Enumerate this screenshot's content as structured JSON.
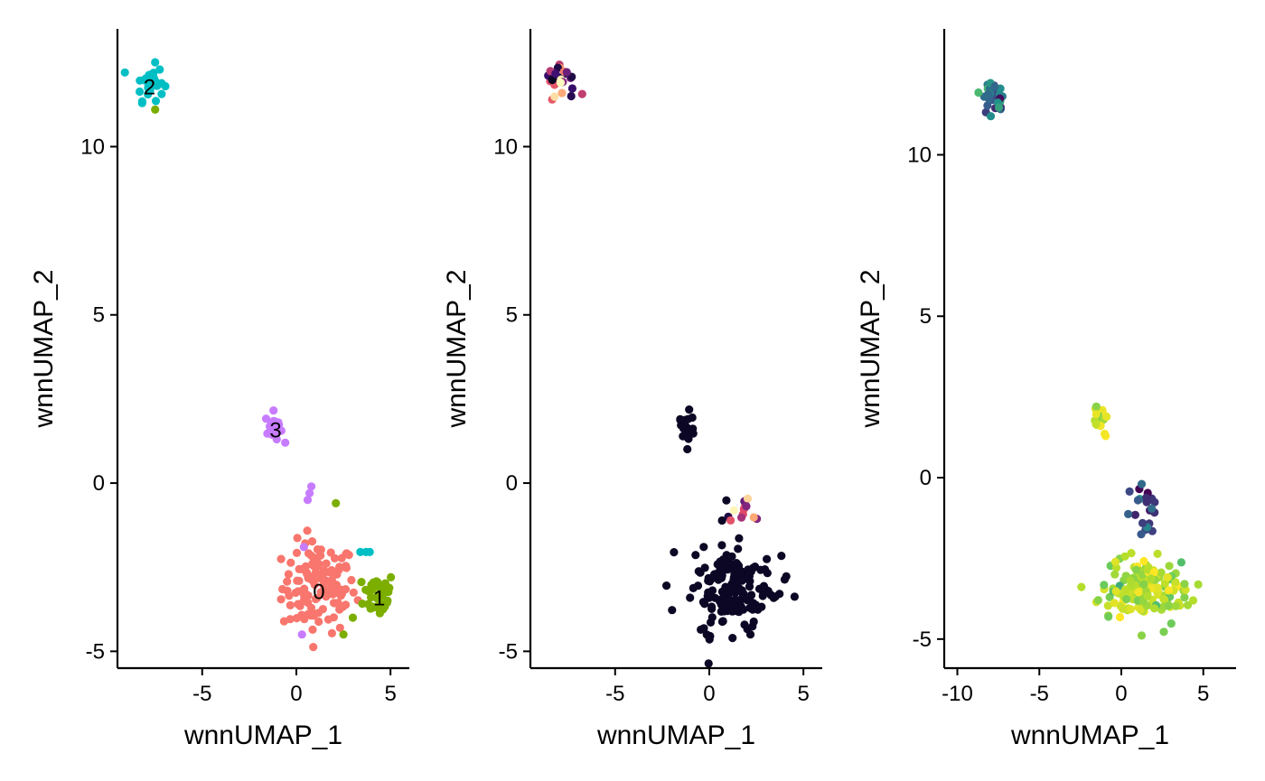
{
  "chart_data": [
    {
      "type": "scatter",
      "title": "",
      "xlabel": "wnnUMAP_1",
      "ylabel": "wnnUMAP_2",
      "xlim": [
        -9.5,
        6
      ],
      "ylim": [
        -5.5,
        13.5
      ],
      "xticks": [
        -5,
        0,
        5
      ],
      "yticks": [
        -5,
        0,
        5,
        10
      ],
      "xtick_labels": [
        "-5",
        "0",
        "5"
      ],
      "ytick_labels": [
        "-5",
        "0",
        "5",
        "10"
      ],
      "grid": false,
      "legend": "none",
      "color_mode": "categorical",
      "groups": [
        {
          "id": "0",
          "color": "#F8766D",
          "center": [
            1.2,
            -3.1
          ],
          "spread": [
            1.3,
            0.9
          ],
          "count": 120
        },
        {
          "id": "1",
          "color": "#7CAE00",
          "center": [
            4.4,
            -3.3
          ],
          "spread": [
            0.55,
            0.45
          ],
          "count": 45
        },
        {
          "id": "2",
          "color": "#00BFC4",
          "center": [
            -7.8,
            11.9
          ],
          "spread": [
            0.5,
            0.35
          ],
          "count": 30
        },
        {
          "id": "3",
          "color": "#C77CFF",
          "center": [
            -1.2,
            1.65
          ],
          "spread": [
            0.3,
            0.3
          ],
          "count": 20
        }
      ],
      "extra_points": [
        {
          "x": 0.8,
          "y": -0.1,
          "group": "3"
        },
        {
          "x": 0.7,
          "y": -0.3,
          "group": "3"
        },
        {
          "x": 0.6,
          "y": -0.5,
          "group": "3"
        },
        {
          "x": 0.4,
          "y": -1.9,
          "group": "3"
        },
        {
          "x": 0.3,
          "y": -4.5,
          "group": "3"
        },
        {
          "x": 2.1,
          "y": -0.6,
          "group": "1"
        },
        {
          "x": 3.4,
          "y": -2.05,
          "group": "2"
        },
        {
          "x": 3.7,
          "y": -2.05,
          "group": "2"
        },
        {
          "x": 3.9,
          "y": -2.05,
          "group": "2"
        },
        {
          "x": -7.5,
          "y": 11.1,
          "group": "1"
        },
        {
          "x": 2.5,
          "y": -4.5,
          "group": "1"
        },
        {
          "x": 3.0,
          "y": -4.0,
          "group": "1"
        }
      ],
      "cluster_labels": [
        {
          "text": "0",
          "x": 1.2,
          "y": -3.2
        },
        {
          "text": "1",
          "x": 4.4,
          "y": -3.4
        },
        {
          "text": "2",
          "x": -7.8,
          "y": 11.8
        },
        {
          "text": "3",
          "x": -1.1,
          "y": 1.6
        }
      ]
    },
    {
      "type": "scatter",
      "title": "",
      "xlabel": "wnnUMAP_1",
      "ylabel": "wnnUMAP_2",
      "xlim": [
        -9.5,
        6
      ],
      "ylim": [
        -5.5,
        13.5
      ],
      "xticks": [
        -5,
        0,
        5
      ],
      "yticks": [
        -5,
        0,
        5,
        10
      ],
      "xtick_labels": [
        "-5",
        "0",
        "5"
      ],
      "ytick_labels": [
        "-5",
        "0",
        "5",
        "10"
      ],
      "grid": false,
      "legend": "none",
      "color_mode": "continuous",
      "palette": [
        "#0b0724",
        "#3b0f70",
        "#8c2981",
        "#de4968",
        "#fe9f6d",
        "#fcfdbf"
      ],
      "clouds": [
        {
          "center": [
            1.2,
            -3.2
          ],
          "spread": [
            1.6,
            0.85
          ],
          "count": 165,
          "level": 0.0
        },
        {
          "center": [
            -1.2,
            1.65
          ],
          "spread": [
            0.3,
            0.3
          ],
          "count": 20,
          "level": 0.0
        },
        {
          "center": [
            -7.9,
            11.9
          ],
          "spread": [
            0.55,
            0.4
          ],
          "count": 30,
          "level": "mixed"
        },
        {
          "center": [
            1.6,
            -0.9
          ],
          "spread": [
            0.55,
            0.45
          ],
          "count": 14,
          "level": "mixed"
        }
      ]
    },
    {
      "type": "scatter",
      "title": "",
      "xlabel": "wnnUMAP_1",
      "ylabel": "wnnUMAP_2",
      "xlim": [
        -10.8,
        7
      ],
      "ylim": [
        -5.9,
        13.9
      ],
      "xticks": [
        -10,
        -5,
        0,
        5
      ],
      "yticks": [
        -5,
        0,
        5,
        10
      ],
      "xtick_labels": [
        "-10",
        "-5",
        "0",
        "5"
      ],
      "ytick_labels": [
        "-5",
        "0",
        "5",
        "10"
      ],
      "grid": false,
      "legend": "none",
      "color_mode": "continuous",
      "palette": [
        "#440154",
        "#3b528b",
        "#21908c",
        "#5dc863",
        "#b5de2b",
        "#fde725"
      ],
      "clouds": [
        {
          "center": [
            1.5,
            -3.5
          ],
          "spread": [
            1.8,
            0.65
          ],
          "count": 150,
          "level": 0.8
        },
        {
          "center": [
            -1.2,
            1.7
          ],
          "spread": [
            0.3,
            0.3
          ],
          "count": 20,
          "level": 0.85
        },
        {
          "center": [
            -7.9,
            11.8
          ],
          "spread": [
            0.5,
            0.4
          ],
          "count": 30,
          "level": 0.3
        },
        {
          "center": [
            1.6,
            -1.2
          ],
          "spread": [
            0.7,
            0.7
          ],
          "count": 22,
          "level": 0.15
        }
      ]
    }
  ]
}
